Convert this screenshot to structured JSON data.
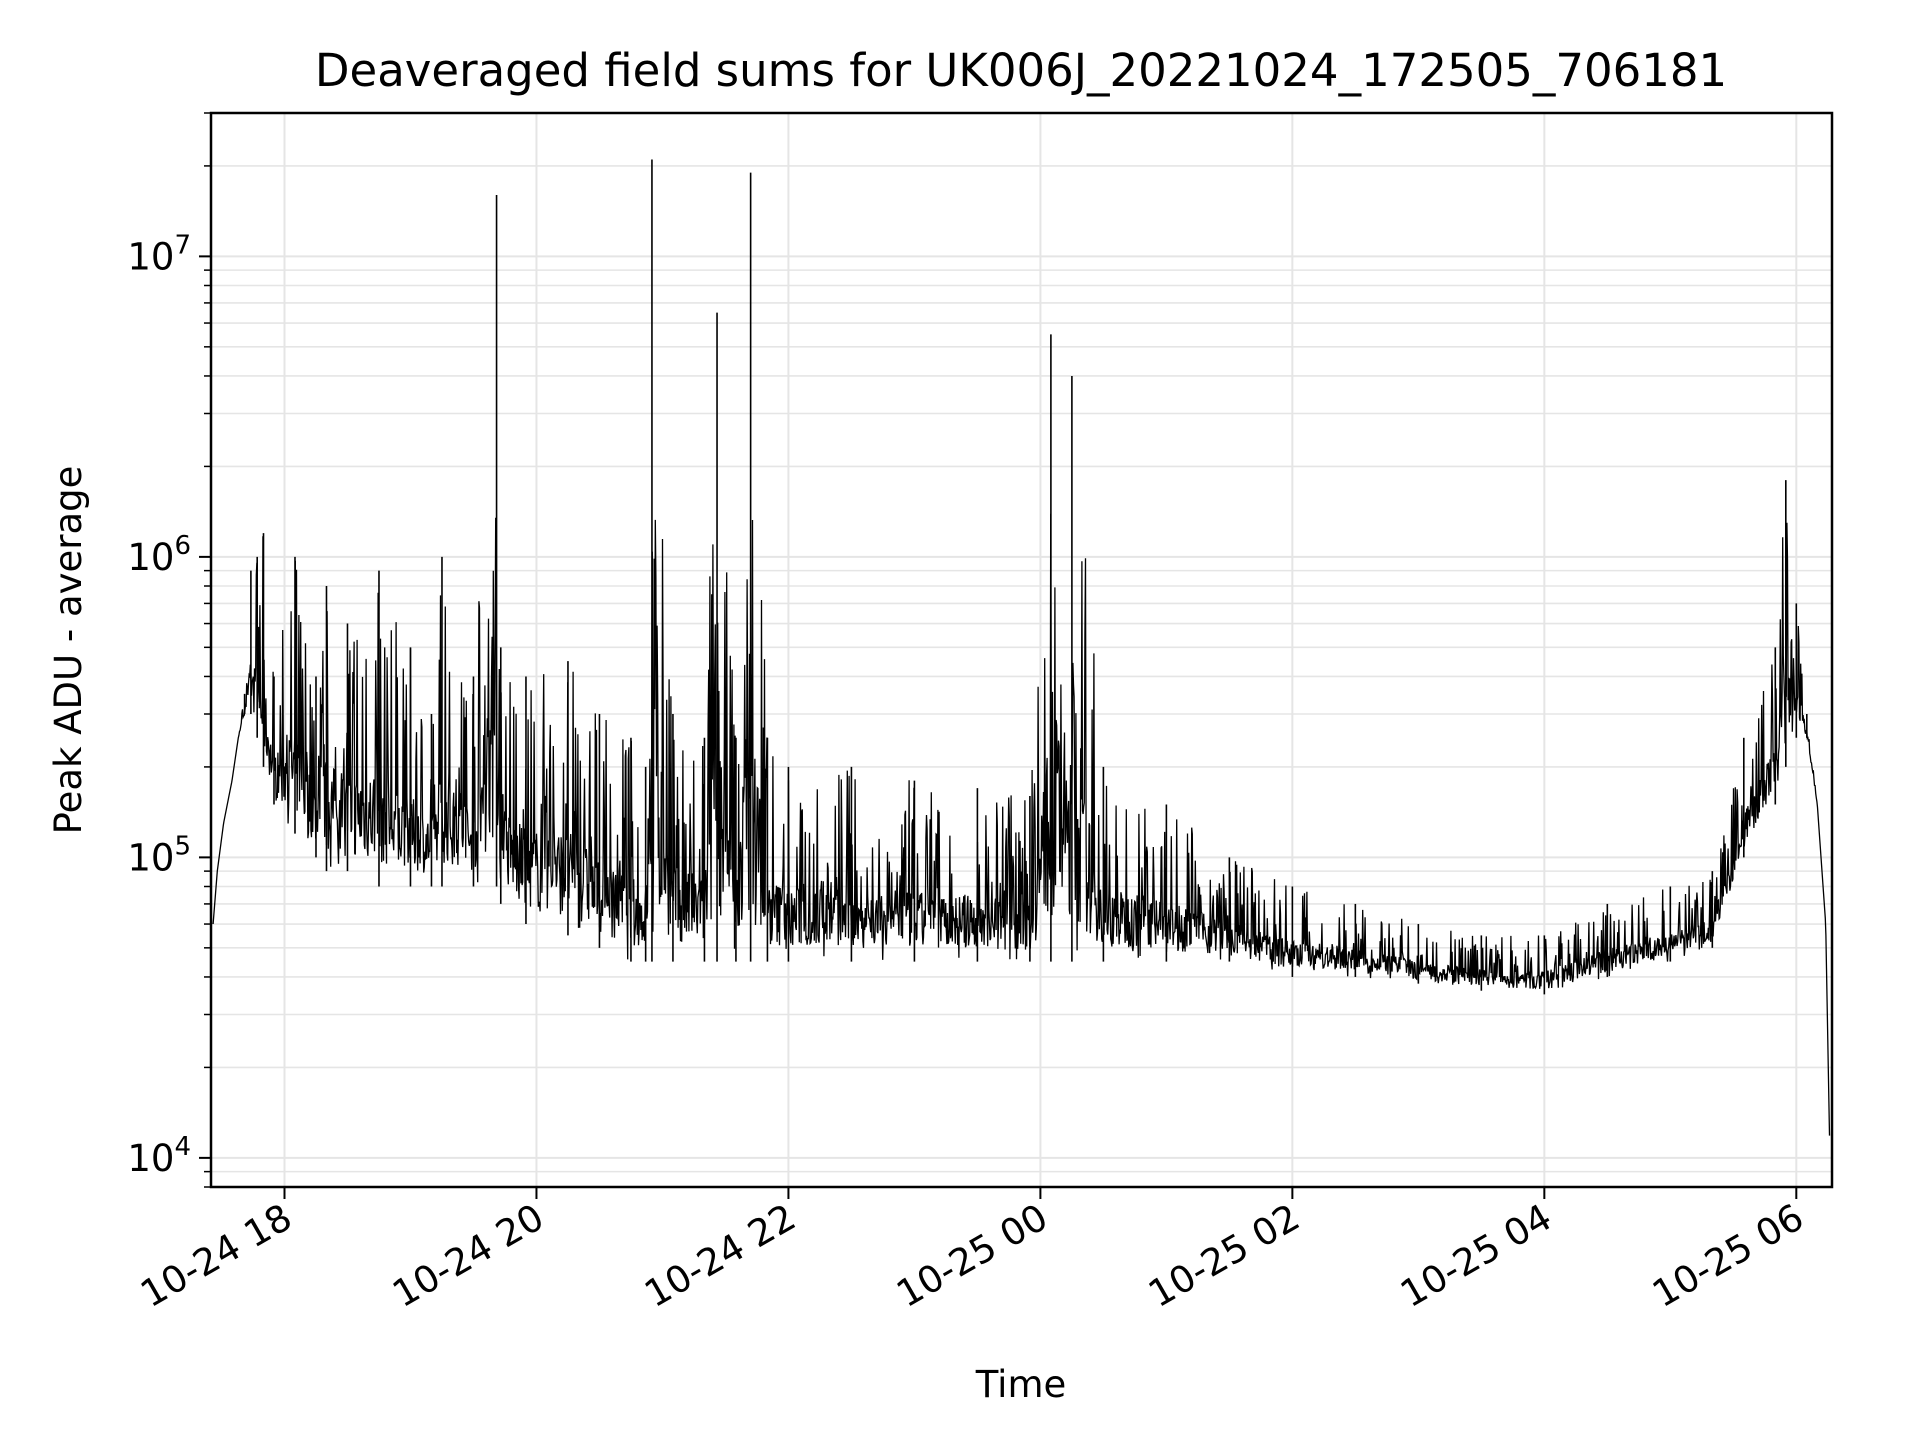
{
  "chart_data": {
    "type": "line",
    "title": "Deaveraged field sums for UK006J_20221024_172505_706181",
    "xlabel": "Time",
    "ylabel": "Peak ADU - average",
    "y_scale": "log",
    "ylim": [
      8000,
      30000000
    ],
    "xlim": [
      "2022-10-24 17:25",
      "2022-10-25 06:17"
    ],
    "grid": true,
    "line_color": "#000000",
    "grid_color": "#e5e5e5",
    "x_ticks": [
      {
        "value": "2022-10-24 18:00",
        "label": "10-24 18"
      },
      {
        "value": "2022-10-24 20:00",
        "label": "10-24 20"
      },
      {
        "value": "2022-10-24 22:00",
        "label": "10-24 22"
      },
      {
        "value": "2022-10-25 00:00",
        "label": "10-25 00"
      },
      {
        "value": "2022-10-25 02:00",
        "label": "10-25 02"
      },
      {
        "value": "2022-10-25 04:00",
        "label": "10-25 04"
      },
      {
        "value": "2022-10-25 06:00",
        "label": "10-25 06"
      }
    ],
    "y_ticks": [
      {
        "value": 10000,
        "base": "10",
        "exp": "4"
      },
      {
        "value": 100000,
        "base": "10",
        "exp": "5"
      },
      {
        "value": 1000000,
        "base": "10",
        "exp": "6"
      },
      {
        "value": 10000000,
        "base": "10",
        "exp": "7"
      }
    ],
    "series": [
      {
        "x": [
          "2022-10-24 17:26",
          "2022-10-24 17:28",
          "2022-10-24 17:31",
          "2022-10-24 17:35",
          "2022-10-24 17:38",
          "2022-10-24 17:41",
          "2022-10-24 17:44",
          "2022-10-24 17:47",
          "2022-10-24 17:50",
          "2022-10-24 17:55",
          "2022-10-24 18:05",
          "2022-10-24 18:15",
          "2022-10-24 18:20",
          "2022-10-24 18:30",
          "2022-10-24 18:45",
          "2022-10-24 19:00",
          "2022-10-24 19:10",
          "2022-10-24 19:15",
          "2022-10-24 19:30",
          "2022-10-24 19:41",
          "2022-10-24 19:43",
          "2022-10-24 19:55",
          "2022-10-24 20:15",
          "2022-10-24 20:30",
          "2022-10-24 20:45",
          "2022-10-24 20:52",
          "2022-10-24 20:55",
          "2022-10-24 21:05",
          "2022-10-24 21:20",
          "2022-10-24 21:26",
          "2022-10-24 21:35",
          "2022-10-24 21:42",
          "2022-10-24 21:50",
          "2022-10-24 22:00",
          "2022-10-24 22:30",
          "2022-10-24 23:00",
          "2022-10-24 23:30",
          "2022-10-24 23:55",
          "2022-10-25 00:05",
          "2022-10-25 00:15",
          "2022-10-25 00:30",
          "2022-10-25 01:00",
          "2022-10-25 01:30",
          "2022-10-25 02:00",
          "2022-10-25 02:30",
          "2022-10-25 03:00",
          "2022-10-25 03:30",
          "2022-10-25 04:00",
          "2022-10-25 04:30",
          "2022-10-25 05:00",
          "2022-10-25 05:20",
          "2022-10-25 05:35",
          "2022-10-25 05:50",
          "2022-10-25 05:55",
          "2022-10-25 06:00",
          "2022-10-25 06:05",
          "2022-10-25 06:10",
          "2022-10-25 06:14",
          "2022-10-25 06:16"
        ],
        "y": [
          60000,
          90000,
          130000,
          180000,
          250000,
          350000,
          900000,
          1000000,
          1200000,
          400000,
          1000000,
          400000,
          800000,
          600000,
          900000,
          500000,
          300000,
          1000000,
          400000,
          16000000,
          500000,
          400000,
          450000,
          300000,
          250000,
          200000,
          21000000,
          300000,
          250000,
          6500000,
          250000,
          19000000,
          250000,
          200000,
          200000,
          180000,
          170000,
          160000,
          5500000,
          4000000,
          200000,
          150000,
          100000,
          80000,
          70000,
          60000,
          55000,
          55000,
          70000,
          80000,
          90000,
          250000,
          500000,
          1800000,
          700000,
          300000,
          150000,
          60000,
          10000
        ],
        "envelope_low": [
          60000,
          90000,
          130000,
          180000,
          250000,
          300000,
          300000,
          250000,
          200000,
          150000,
          120000,
          100000,
          90000,
          90000,
          80000,
          80000,
          80000,
          80000,
          80000,
          80000,
          70000,
          60000,
          55000,
          50000,
          45000,
          45000,
          45000,
          45000,
          45000,
          45000,
          45000,
          45000,
          45000,
          45000,
          45000,
          45000,
          45000,
          45000,
          45000,
          45000,
          45000,
          45000,
          45000,
          40000,
          40000,
          38000,
          36000,
          35000,
          40000,
          45000,
          50000,
          100000,
          150000,
          200000,
          250000,
          250000,
          150000,
          60000,
          10000
        ]
      }
    ]
  }
}
